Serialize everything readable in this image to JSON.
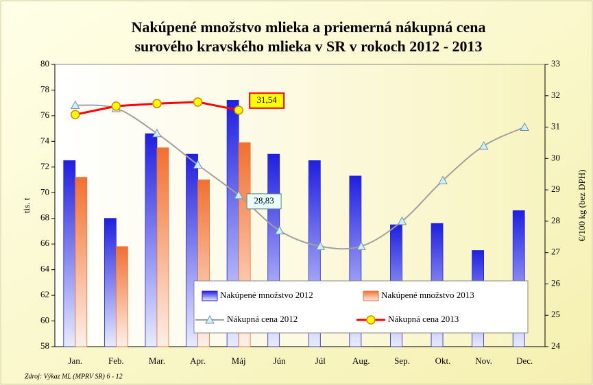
{
  "chart_data": {
    "type": "bar-line",
    "title": [
      "Nakúpené množstvo mlieka a priemerná nákupná cena",
      "surového kravského mlieka v SR v rokoch 2012 - 2013"
    ],
    "y_label": "tis. t",
    "y2_label": "€/100 kg (bez DPH)",
    "source": "Zdroj: Výkaz ML (MPRV SR) 6 - 12",
    "categories": [
      "Jan.",
      "Feb.",
      "Mar.",
      "Apr.",
      "Máj",
      "Jún",
      "Júl",
      "Aug.",
      "Sep.",
      "Okt.",
      "Nov.",
      "Dec."
    ],
    "ylim": [
      58,
      80
    ],
    "yticks": [
      58,
      60,
      62,
      64,
      66,
      68,
      70,
      72,
      74,
      76,
      78,
      80
    ],
    "y2lim": [
      24,
      33
    ],
    "y2ticks": [
      24,
      25,
      26,
      27,
      28,
      29,
      30,
      31,
      32,
      33
    ],
    "series": [
      {
        "name": "Nakúpené množstvo 2012",
        "kind": "bar",
        "color": "#1f1fe0",
        "values": [
          72.5,
          68.0,
          74.6,
          73.0,
          77.2,
          73.0,
          72.5,
          71.3,
          67.5,
          67.6,
          65.5,
          68.6
        ]
      },
      {
        "name": "Nakúpené množstvo 2013",
        "kind": "bar",
        "color": "#f07030",
        "values": [
          71.2,
          65.8,
          73.5,
          71.0,
          73.9,
          null,
          null,
          null,
          null,
          null,
          null,
          null
        ]
      },
      {
        "name": "Nákupná cena 2012",
        "kind": "line",
        "axis": "y2",
        "color": "#a0a0a0",
        "marker_color": "#c8f0ff",
        "values": [
          31.7,
          31.6,
          30.8,
          29.8,
          28.83,
          27.7,
          27.2,
          27.2,
          28.0,
          29.3,
          30.4,
          31.0
        ],
        "value_labels": [
          null,
          null,
          null,
          null,
          "28,83",
          null,
          null,
          null,
          null,
          null,
          null,
          null
        ]
      },
      {
        "name": "Nákupná cena 2013",
        "kind": "line",
        "axis": "y2",
        "color": "#ff0000",
        "marker_color": "#ffff00",
        "values": [
          31.4,
          31.67,
          31.75,
          31.8,
          31.54,
          null,
          null,
          null,
          null,
          null,
          null,
          null
        ],
        "value_labels": [
          null,
          null,
          null,
          null,
          "31,54",
          null,
          null,
          null,
          null,
          null,
          null,
          null
        ]
      }
    ]
  }
}
